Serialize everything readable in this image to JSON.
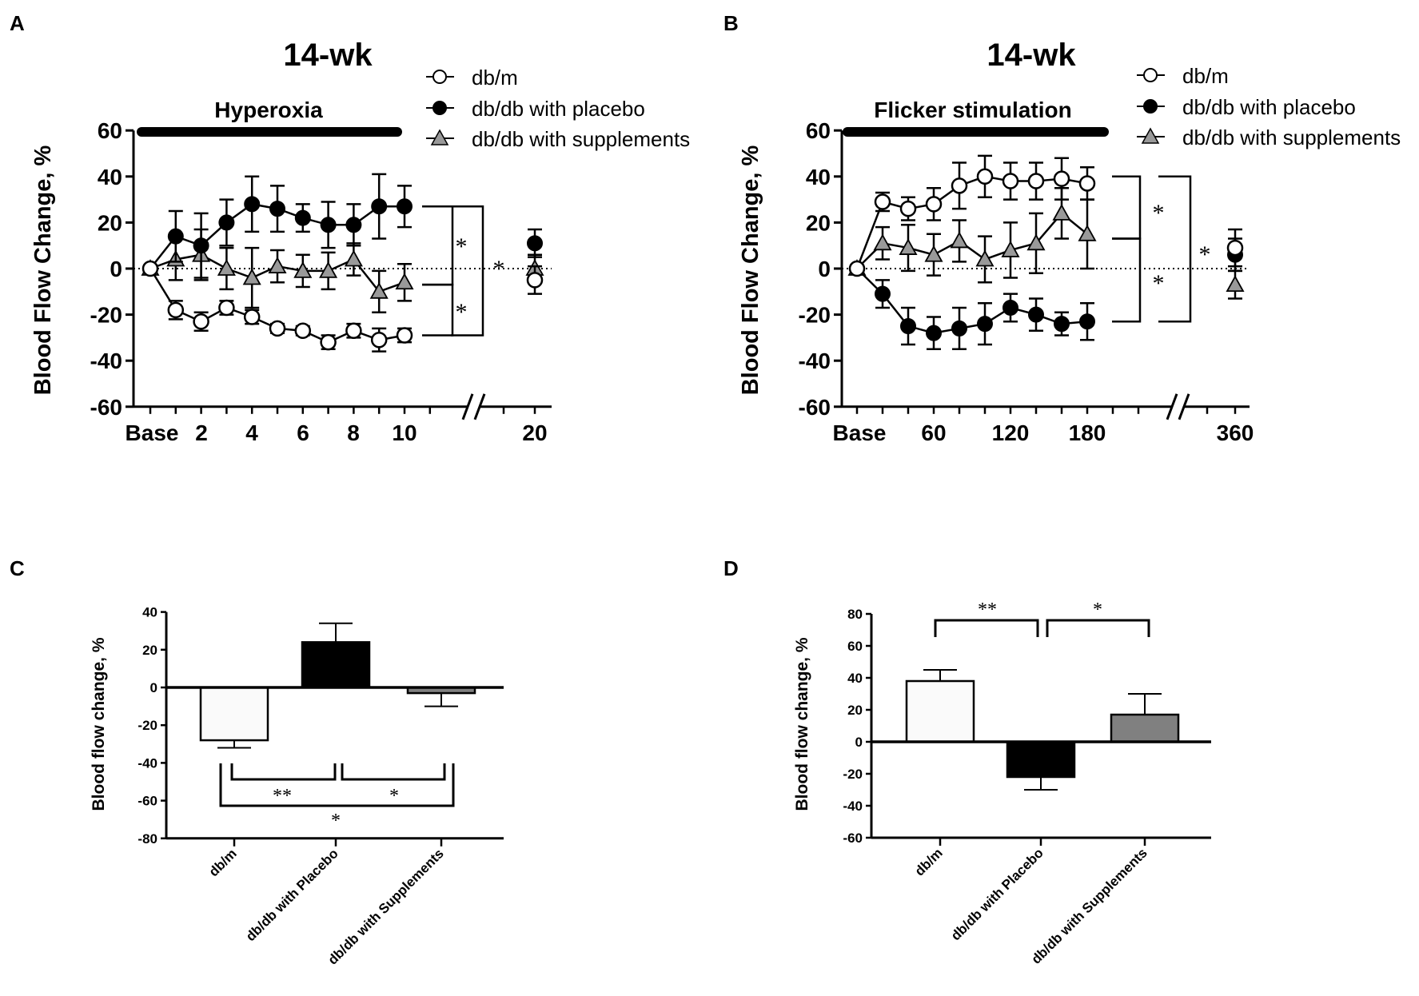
{
  "chart_data": [
    {
      "panel": "A",
      "type": "line",
      "title": "14-wk",
      "condition_label": "Hyperoxia",
      "ylabel": "Blood Flow Change, %",
      "ylim": [
        -60,
        60
      ],
      "yticks": [
        "60",
        "40",
        "20",
        "0",
        "-20",
        "-40",
        "-60"
      ],
      "xticks": [
        "Base",
        "2",
        "4",
        "6",
        "8",
        "10",
        "20"
      ],
      "x": [
        0,
        1,
        2,
        3,
        4,
        5,
        6,
        7,
        8,
        9,
        10
      ],
      "x_after_break": 20,
      "legend": [
        "db/m",
        "db/db with placebo",
        "db/db with supplements"
      ],
      "series": [
        {
          "name": "db/m",
          "marker": "open-circle",
          "values": [
            0,
            -18,
            -23,
            -17,
            -21,
            -26,
            -27,
            -32,
            -27,
            -31,
            -29
          ],
          "err": [
            0,
            4,
            4,
            3,
            3,
            2,
            2,
            3,
            3,
            5,
            3
          ],
          "after_break": {
            "value": -5,
            "err": 6
          }
        },
        {
          "name": "db/db with placebo",
          "marker": "filled-circle",
          "values": [
            0,
            14,
            10,
            20,
            28,
            26,
            22,
            19,
            19,
            27,
            27
          ],
          "err": [
            0,
            11,
            14,
            10,
            12,
            10,
            6,
            10,
            9,
            14,
            9
          ],
          "after_break": {
            "value": 11,
            "err": 6
          }
        },
        {
          "name": "db/db with supplements",
          "marker": "gray-triangle",
          "values": [
            0,
            4,
            6,
            0,
            -4,
            1,
            -1,
            -1,
            4,
            -10,
            -6
          ],
          "err": [
            0,
            9,
            11,
            9,
            13,
            7,
            7,
            8,
            7,
            9,
            8
          ],
          "after_break": {
            "value": 0,
            "err": 6
          }
        }
      ],
      "significance": [
        "*",
        "*",
        "*"
      ]
    },
    {
      "panel": "B",
      "type": "line",
      "title": "14-wk",
      "condition_label": "Flicker stimulation",
      "ylabel": "Blood Flow Change, %",
      "ylim": [
        -60,
        60
      ],
      "yticks": [
        "60",
        "40",
        "20",
        "0",
        "-20",
        "-40",
        "-60"
      ],
      "xticks": [
        "Base",
        "60",
        "120",
        "180",
        "360"
      ],
      "x": [
        0,
        20,
        40,
        60,
        80,
        100,
        120,
        140,
        160,
        180
      ],
      "x_after_break": 360,
      "legend": [
        "db/m",
        "db/db with placebo",
        "db/db with supplements"
      ],
      "series": [
        {
          "name": "db/m",
          "marker": "open-circle",
          "values": [
            0,
            29,
            26,
            28,
            36,
            40,
            38,
            38,
            39,
            37
          ],
          "err": [
            0,
            4,
            5,
            7,
            10,
            9,
            8,
            8,
            9,
            7
          ],
          "after_break": {
            "value": 9,
            "err": 8
          }
        },
        {
          "name": "db/db with placebo",
          "marker": "filled-circle",
          "values": [
            0,
            -11,
            -25,
            -28,
            -26,
            -24,
            -17,
            -20,
            -24,
            -23
          ],
          "err": [
            0,
            6,
            8,
            7,
            9,
            9,
            6,
            7,
            5,
            8
          ],
          "after_break": {
            "value": 6,
            "err": 7
          }
        },
        {
          "name": "db/db with supplements",
          "marker": "gray-triangle",
          "values": [
            0,
            11,
            9,
            6,
            12,
            4,
            8,
            11,
            24,
            15
          ],
          "err": [
            0,
            7,
            10,
            9,
            9,
            10,
            12,
            13,
            11,
            15
          ],
          "after_break": {
            "value": -7,
            "err": 6
          }
        }
      ],
      "significance": [
        "*",
        "*",
        "*"
      ]
    },
    {
      "panel": "C",
      "type": "bar",
      "ylabel": "Blood flow change, %",
      "ylim": [
        -80,
        40
      ],
      "yticks": [
        "40",
        "20",
        "0",
        "-20",
        "-40",
        "-60",
        "-80"
      ],
      "categories": [
        "db/m",
        "db/db with Placebo",
        "db/db with Supplements"
      ],
      "values": [
        -28,
        24,
        -3
      ],
      "err": [
        4,
        10,
        7
      ],
      "colors": [
        "#fafafa",
        "#000000",
        "#808080"
      ],
      "significance": [
        "**",
        "*",
        "*"
      ]
    },
    {
      "panel": "D",
      "type": "bar",
      "ylabel": "Blood flow change, %",
      "ylim": [
        -60,
        80
      ],
      "yticks": [
        "80",
        "60",
        "40",
        "20",
        "0",
        "-20",
        "-40",
        "-60"
      ],
      "categories": [
        "db/m",
        "db/db with Placebo",
        "db/db with Supplements"
      ],
      "values": [
        38,
        -22,
        17
      ],
      "err": [
        7,
        8,
        13
      ],
      "colors": [
        "#fafafa",
        "#000000",
        "#808080"
      ],
      "significance": [
        "**",
        "*"
      ]
    }
  ]
}
